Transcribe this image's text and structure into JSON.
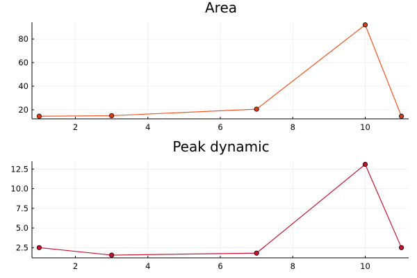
{
  "chart_data": [
    {
      "type": "line",
      "title": "Area",
      "xlabel": "",
      "ylabel": "",
      "x": [
        1,
        3,
        7,
        10,
        11
      ],
      "series": [
        {
          "values": [
            14.5,
            15.0,
            20.5,
            92.0,
            14.5
          ],
          "color": "#f4511e",
          "marker_color": "#e03a0c"
        }
      ],
      "xlim": [
        0.8,
        11.2
      ],
      "ylim": [
        12.3,
        94.2
      ],
      "xticks": [
        2,
        4,
        6,
        8,
        10
      ],
      "xtick_labels": [
        "2",
        "4",
        "6",
        "8",
        "10"
      ],
      "yticks": [
        20,
        40,
        60,
        80
      ],
      "ytick_labels": [
        "20",
        "40",
        "60",
        "80"
      ],
      "grid": true,
      "legend": "none"
    },
    {
      "type": "line",
      "title": "Peak dynamic",
      "xlabel": "",
      "ylabel": "",
      "x": [
        1,
        3,
        7,
        10,
        11
      ],
      "series": [
        {
          "values": [
            2.5,
            1.55,
            1.8,
            13.1,
            2.5
          ],
          "color": "#c8102e",
          "marker_color": "#c8102e"
        }
      ],
      "xlim": [
        0.8,
        11.2
      ],
      "ylim": [
        1.2,
        13.5
      ],
      "xticks": [
        2,
        4,
        6,
        8,
        10
      ],
      "xtick_labels": [
        "2",
        "4",
        "6",
        "8",
        "10"
      ],
      "yticks": [
        2.5,
        5.0,
        7.5,
        10.0,
        12.5
      ],
      "ytick_labels": [
        "2.5",
        "5.0",
        "7.5",
        "10.0",
        "12.5"
      ],
      "grid": true,
      "legend": "none"
    }
  ]
}
